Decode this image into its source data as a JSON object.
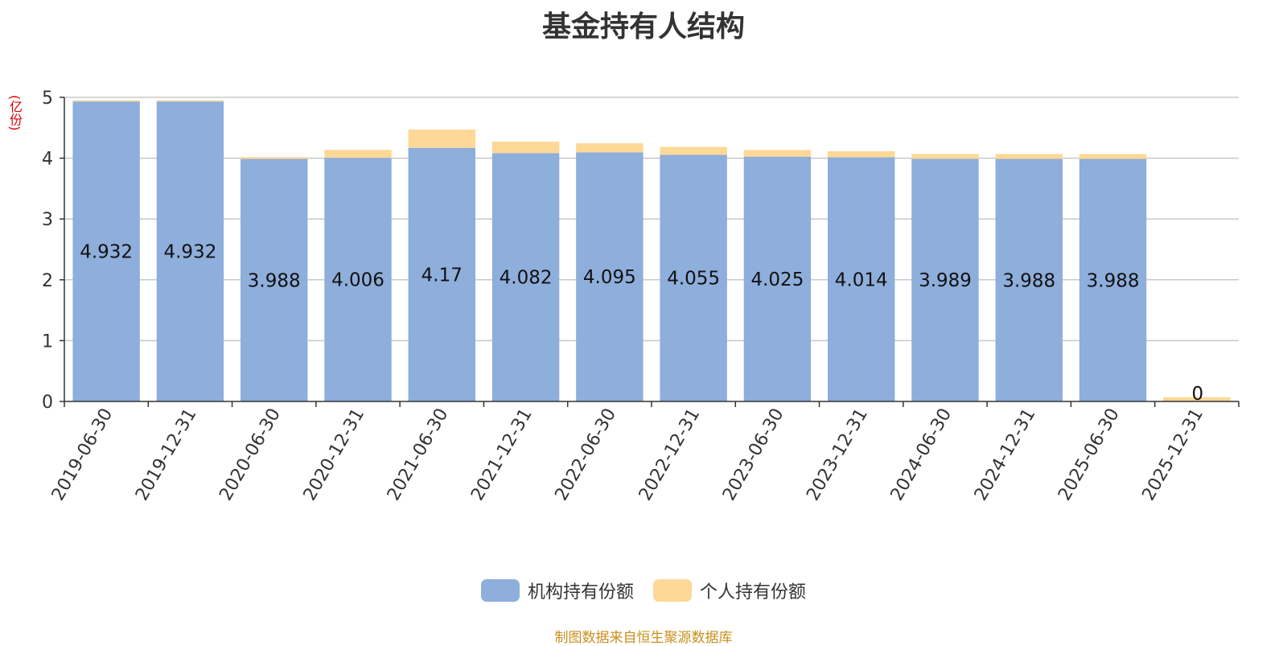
{
  "chart_data": {
    "type": "bar",
    "stacked": true,
    "title": "基金持有人结构",
    "ylabel": "(亿份)",
    "ylim": [
      0,
      5
    ],
    "yticks": [
      0,
      1,
      2,
      3,
      4,
      5
    ],
    "grid": true,
    "legend_position": "bottom",
    "categories": [
      "2019-06-30",
      "2019-12-31",
      "2020-06-30",
      "2020-12-31",
      "2021-06-30",
      "2021-12-31",
      "2022-06-30",
      "2022-12-31",
      "2023-06-30",
      "2023-12-31",
      "2024-06-30",
      "2024-12-31",
      "2025-06-30",
      "2025-12-31"
    ],
    "series": [
      {
        "name": "机构持有份额",
        "color": "#8eaedb",
        "values": [
          4.932,
          4.932,
          3.988,
          4.006,
          4.17,
          4.082,
          4.095,
          4.055,
          4.025,
          4.014,
          3.989,
          3.988,
          3.988,
          0
        ],
        "labels": [
          "4.932",
          "4.932",
          "3.988",
          "4.006",
          "4.17",
          "4.082",
          "4.095",
          "4.055",
          "4.025",
          "4.014",
          "3.989",
          "3.988",
          "3.988",
          "0"
        ]
      },
      {
        "name": "个人持有份额",
        "color": "#fdd896",
        "values": [
          0.02,
          0.02,
          0.03,
          0.13,
          0.3,
          0.19,
          0.15,
          0.13,
          0.11,
          0.1,
          0.08,
          0.08,
          0.08,
          0.07
        ]
      }
    ]
  },
  "footer": {
    "source": "制图数据来自恒生聚源数据库"
  }
}
